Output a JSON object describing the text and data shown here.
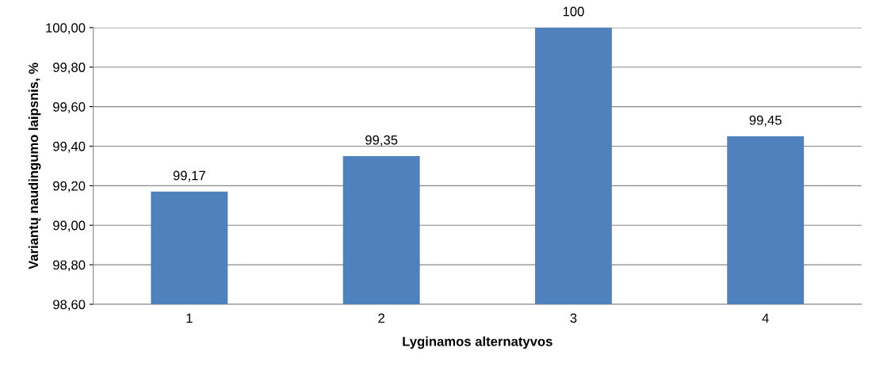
{
  "chart_data": {
    "type": "bar",
    "xlabel": "Lyginamos alternatyvos",
    "ylabel": "Variantų naudingumo laipsnis, %",
    "categories": [
      "1",
      "2",
      "3",
      "4"
    ],
    "values": [
      99.17,
      99.35,
      100,
      99.45
    ],
    "value_labels": [
      "99,17",
      "99,35",
      "100",
      "99,45"
    ],
    "color": "#4f81bd",
    "ylim": [
      98.6,
      100.0
    ],
    "yticks": [
      {
        "value": 98.6,
        "label": "98,60"
      },
      {
        "value": 98.8,
        "label": "98,80"
      },
      {
        "value": 99.0,
        "label": "99,00"
      },
      {
        "value": 99.2,
        "label": "99,20"
      },
      {
        "value": 99.4,
        "label": "99,40"
      },
      {
        "value": 99.6,
        "label": "99,60"
      },
      {
        "value": 99.8,
        "label": "99,80"
      },
      {
        "value": 100.0,
        "label": "100,00"
      }
    ],
    "grid": "y"
  }
}
